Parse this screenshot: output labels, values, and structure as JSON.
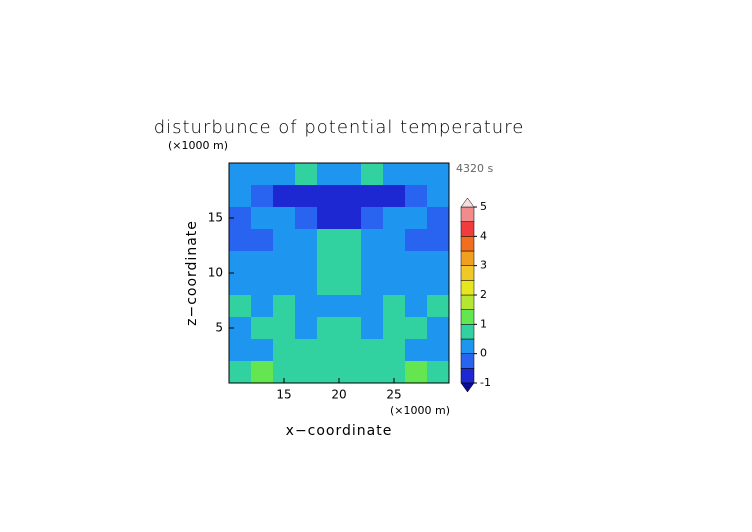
{
  "chart_data": {
    "type": "contour",
    "title": "disturbunce of potential temperature",
    "time_label": "4320 s",
    "x_label": "x−coordinate",
    "y_label": "z−coordinate",
    "x_unit": "(×1000 m)",
    "y_unit": "(×1000 m)",
    "xlim": [
      10,
      30
    ],
    "ylim": [
      0,
      20
    ],
    "xticks": [
      15,
      20,
      25
    ],
    "yticks": [
      5,
      10,
      15
    ],
    "x": [
      11,
      13,
      15,
      17,
      19,
      21,
      23,
      25,
      27,
      29
    ],
    "y": [
      19,
      17,
      15,
      13,
      11,
      9,
      7,
      5,
      3,
      1
    ],
    "z": [
      [
        0.2,
        0.2,
        0.2,
        0.7,
        0.2,
        0.2,
        0.7,
        0.2,
        0.2,
        0.2
      ],
      [
        0.2,
        -0.3,
        -0.7,
        -0.7,
        -0.7,
        -0.7,
        -0.7,
        -0.7,
        -0.3,
        0.2
      ],
      [
        -0.3,
        0.2,
        0.2,
        -0.3,
        -0.7,
        -0.7,
        -0.3,
        0.2,
        0.2,
        -0.3
      ],
      [
        -0.3,
        -0.3,
        0.2,
        0.2,
        0.7,
        0.7,
        0.2,
        0.2,
        -0.3,
        -0.3
      ],
      [
        0.2,
        0.2,
        0.2,
        0.2,
        0.7,
        0.7,
        0.2,
        0.2,
        0.2,
        0.2
      ],
      [
        0.2,
        0.2,
        0.2,
        0.2,
        0.7,
        0.7,
        0.2,
        0.2,
        0.2,
        0.2
      ],
      [
        0.7,
        0.2,
        0.7,
        0.2,
        0.2,
        0.2,
        0.2,
        0.7,
        0.2,
        0.7
      ],
      [
        0.2,
        0.7,
        0.7,
        0.2,
        0.7,
        0.7,
        0.2,
        0.7,
        0.7,
        0.2
      ],
      [
        0.2,
        0.2,
        0.7,
        0.7,
        0.7,
        0.7,
        0.7,
        0.7,
        0.2,
        0.2
      ],
      [
        0.7,
        1.2,
        0.7,
        0.7,
        0.7,
        0.7,
        0.7,
        0.7,
        1.2,
        0.7
      ]
    ],
    "levels": [
      -1,
      -0.5,
      0,
      0.5,
      1,
      1.5,
      2,
      2.5,
      3,
      3.5,
      4,
      4.5,
      5
    ],
    "colors": [
      "#1e28d2",
      "#2864f0",
      "#1e96f0",
      "#32d2a0",
      "#64e650",
      "#b4e632",
      "#e6e61e",
      "#f0c828",
      "#f0a01e",
      "#f06e1e",
      "#f03c3c",
      "#f08c8c",
      "#f5b4b4"
    ],
    "under_color": "#0a0a96",
    "over_color": "#fadcdc",
    "colorbar_ticks": [
      -1,
      0,
      1,
      2,
      3,
      4,
      5
    ]
  }
}
